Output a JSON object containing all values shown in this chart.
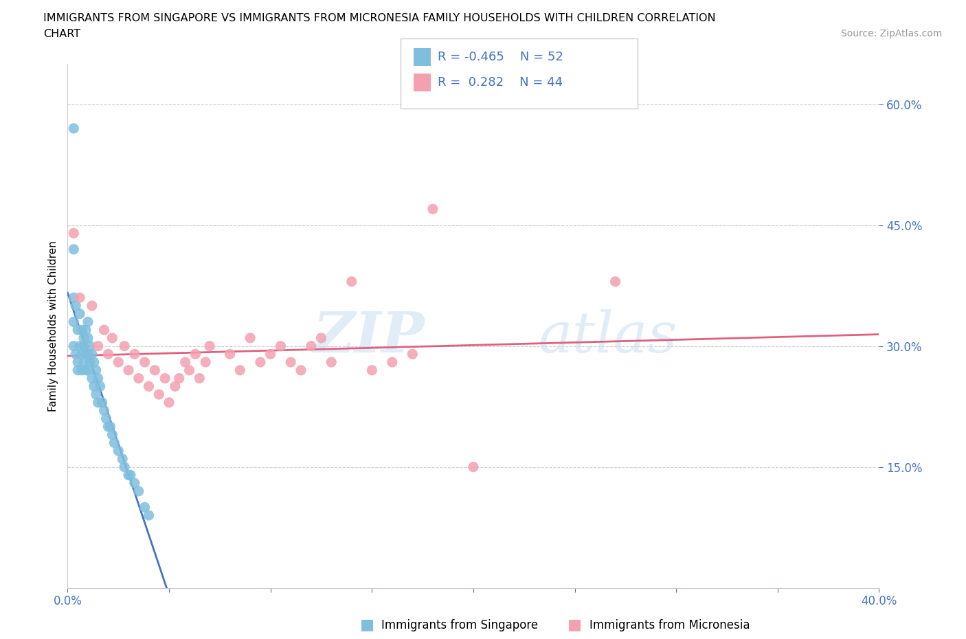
{
  "title_line1": "IMMIGRANTS FROM SINGAPORE VS IMMIGRANTS FROM MICRONESIA FAMILY HOUSEHOLDS WITH CHILDREN CORRELATION",
  "title_line2": "CHART",
  "source": "Source: ZipAtlas.com",
  "ylabel": "Family Households with Children",
  "xlim": [
    0.0,
    0.4
  ],
  "ylim": [
    0.0,
    0.65
  ],
  "yticks": [
    0.15,
    0.3,
    0.45,
    0.6
  ],
  "ytick_labels": [
    "15.0%",
    "30.0%",
    "45.0%",
    "60.0%"
  ],
  "xtick_left_label": "0.0%",
  "xtick_right_label": "40.0%",
  "watermark_zip": "ZIP",
  "watermark_atlas": "atlas",
  "color_singapore": "#7fbfdd",
  "color_micronesia": "#f4a0b0",
  "color_singapore_line": "#4472c4",
  "color_micronesia_line": "#e06080",
  "color_ticks": "#4472c4",
  "legend_r1_label": "R = -0.465",
  "legend_n1_label": "N = 52",
  "legend_r2_label": "R =  0.282",
  "legend_n2_label": "N = 44",
  "singapore_x": [
    0.003,
    0.003,
    0.003,
    0.003,
    0.003,
    0.004,
    0.004,
    0.005,
    0.005,
    0.005,
    0.006,
    0.006,
    0.007,
    0.007,
    0.007,
    0.008,
    0.008,
    0.008,
    0.009,
    0.009,
    0.009,
    0.01,
    0.01,
    0.01,
    0.01,
    0.011,
    0.011,
    0.012,
    0.012,
    0.013,
    0.013,
    0.014,
    0.014,
    0.015,
    0.015,
    0.016,
    0.017,
    0.018,
    0.019,
    0.02,
    0.021,
    0.022,
    0.023,
    0.025,
    0.027,
    0.028,
    0.03,
    0.031,
    0.033,
    0.035,
    0.038,
    0.04
  ],
  "singapore_y": [
    0.57,
    0.42,
    0.36,
    0.33,
    0.3,
    0.35,
    0.29,
    0.32,
    0.28,
    0.27,
    0.34,
    0.3,
    0.32,
    0.29,
    0.27,
    0.31,
    0.3,
    0.28,
    0.32,
    0.29,
    0.27,
    0.33,
    0.31,
    0.29,
    0.27,
    0.3,
    0.28,
    0.29,
    0.26,
    0.28,
    0.25,
    0.27,
    0.24,
    0.26,
    0.23,
    0.25,
    0.23,
    0.22,
    0.21,
    0.2,
    0.2,
    0.19,
    0.18,
    0.17,
    0.16,
    0.15,
    0.14,
    0.14,
    0.13,
    0.12,
    0.1,
    0.09
  ],
  "micronesia_x": [
    0.003,
    0.006,
    0.012,
    0.015,
    0.018,
    0.02,
    0.022,
    0.025,
    0.028,
    0.03,
    0.033,
    0.035,
    0.038,
    0.04,
    0.043,
    0.045,
    0.048,
    0.05,
    0.053,
    0.055,
    0.058,
    0.06,
    0.063,
    0.065,
    0.068,
    0.07,
    0.08,
    0.085,
    0.09,
    0.095,
    0.1,
    0.105,
    0.11,
    0.115,
    0.12,
    0.125,
    0.13,
    0.14,
    0.15,
    0.16,
    0.17,
    0.18,
    0.2,
    0.27
  ],
  "micronesia_y": [
    0.44,
    0.36,
    0.35,
    0.3,
    0.32,
    0.29,
    0.31,
    0.28,
    0.3,
    0.27,
    0.29,
    0.26,
    0.28,
    0.25,
    0.27,
    0.24,
    0.26,
    0.23,
    0.25,
    0.26,
    0.28,
    0.27,
    0.29,
    0.26,
    0.28,
    0.3,
    0.29,
    0.27,
    0.31,
    0.28,
    0.29,
    0.3,
    0.28,
    0.27,
    0.3,
    0.31,
    0.28,
    0.38,
    0.27,
    0.28,
    0.29,
    0.47,
    0.15,
    0.38
  ],
  "sg_line_x0": 0.0,
  "sg_line_x1": 0.13,
  "sg_line_x1_dash": 0.2,
  "mc_line_x0": 0.0,
  "mc_line_x1": 0.4
}
